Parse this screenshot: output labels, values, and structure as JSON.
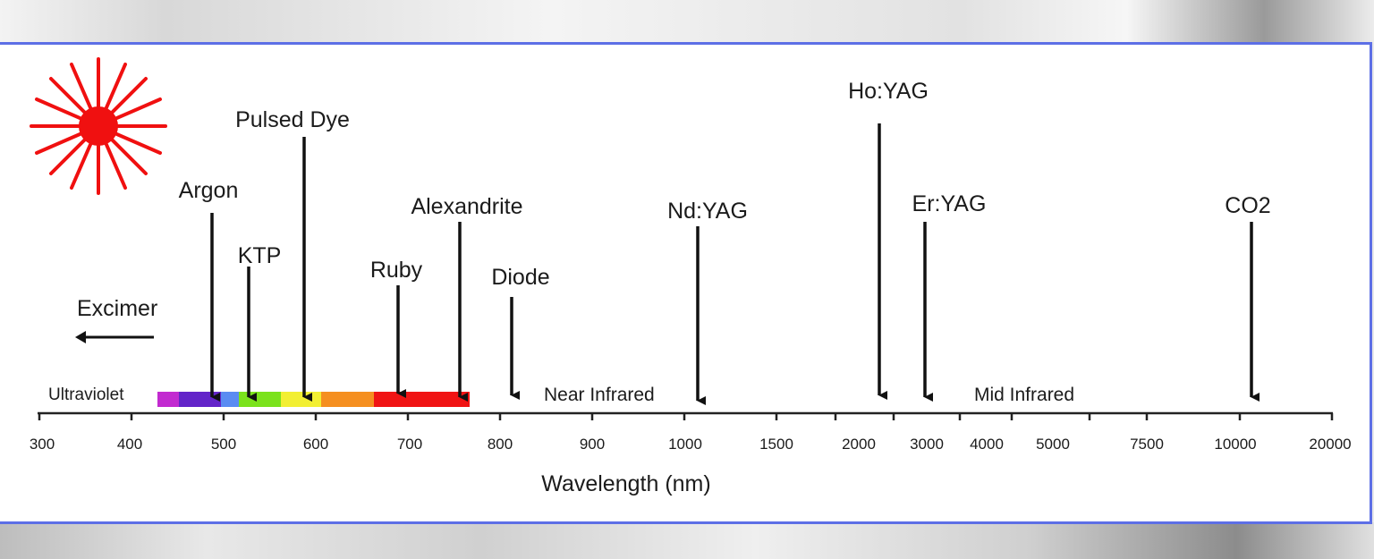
{
  "lasers": [
    {
      "name": "Excimer"
    },
    {
      "name": "Argon"
    },
    {
      "name": "KTP"
    },
    {
      "name": "Pulsed Dye"
    },
    {
      "name": "Ruby"
    },
    {
      "name": "Alexandrite"
    },
    {
      "name": "Diode"
    },
    {
      "name": "Nd:YAG"
    },
    {
      "name": "Ho:YAG"
    },
    {
      "name": "Er:YAG"
    },
    {
      "name": "CO2"
    }
  ],
  "regions": [
    "Ultraviolet",
    "Near Infrared",
    "Mid Infrared"
  ],
  "ticks": [
    "300",
    "400",
    "500",
    "600",
    "700",
    "800",
    "900",
    "1000",
    "1500",
    "2000",
    "3000",
    "4000",
    "5000",
    "7500",
    "10000",
    "20000"
  ],
  "axis_label": "Wavelength (nm)",
  "spectrum_colors": [
    "#c22ad0",
    "#6324c9",
    "#5a8cf2",
    "#7be21c",
    "#f2ef33",
    "#f58f20",
    "#f01414"
  ],
  "frame_color": "#5d6fe6",
  "icon": "laser-burst-icon"
}
